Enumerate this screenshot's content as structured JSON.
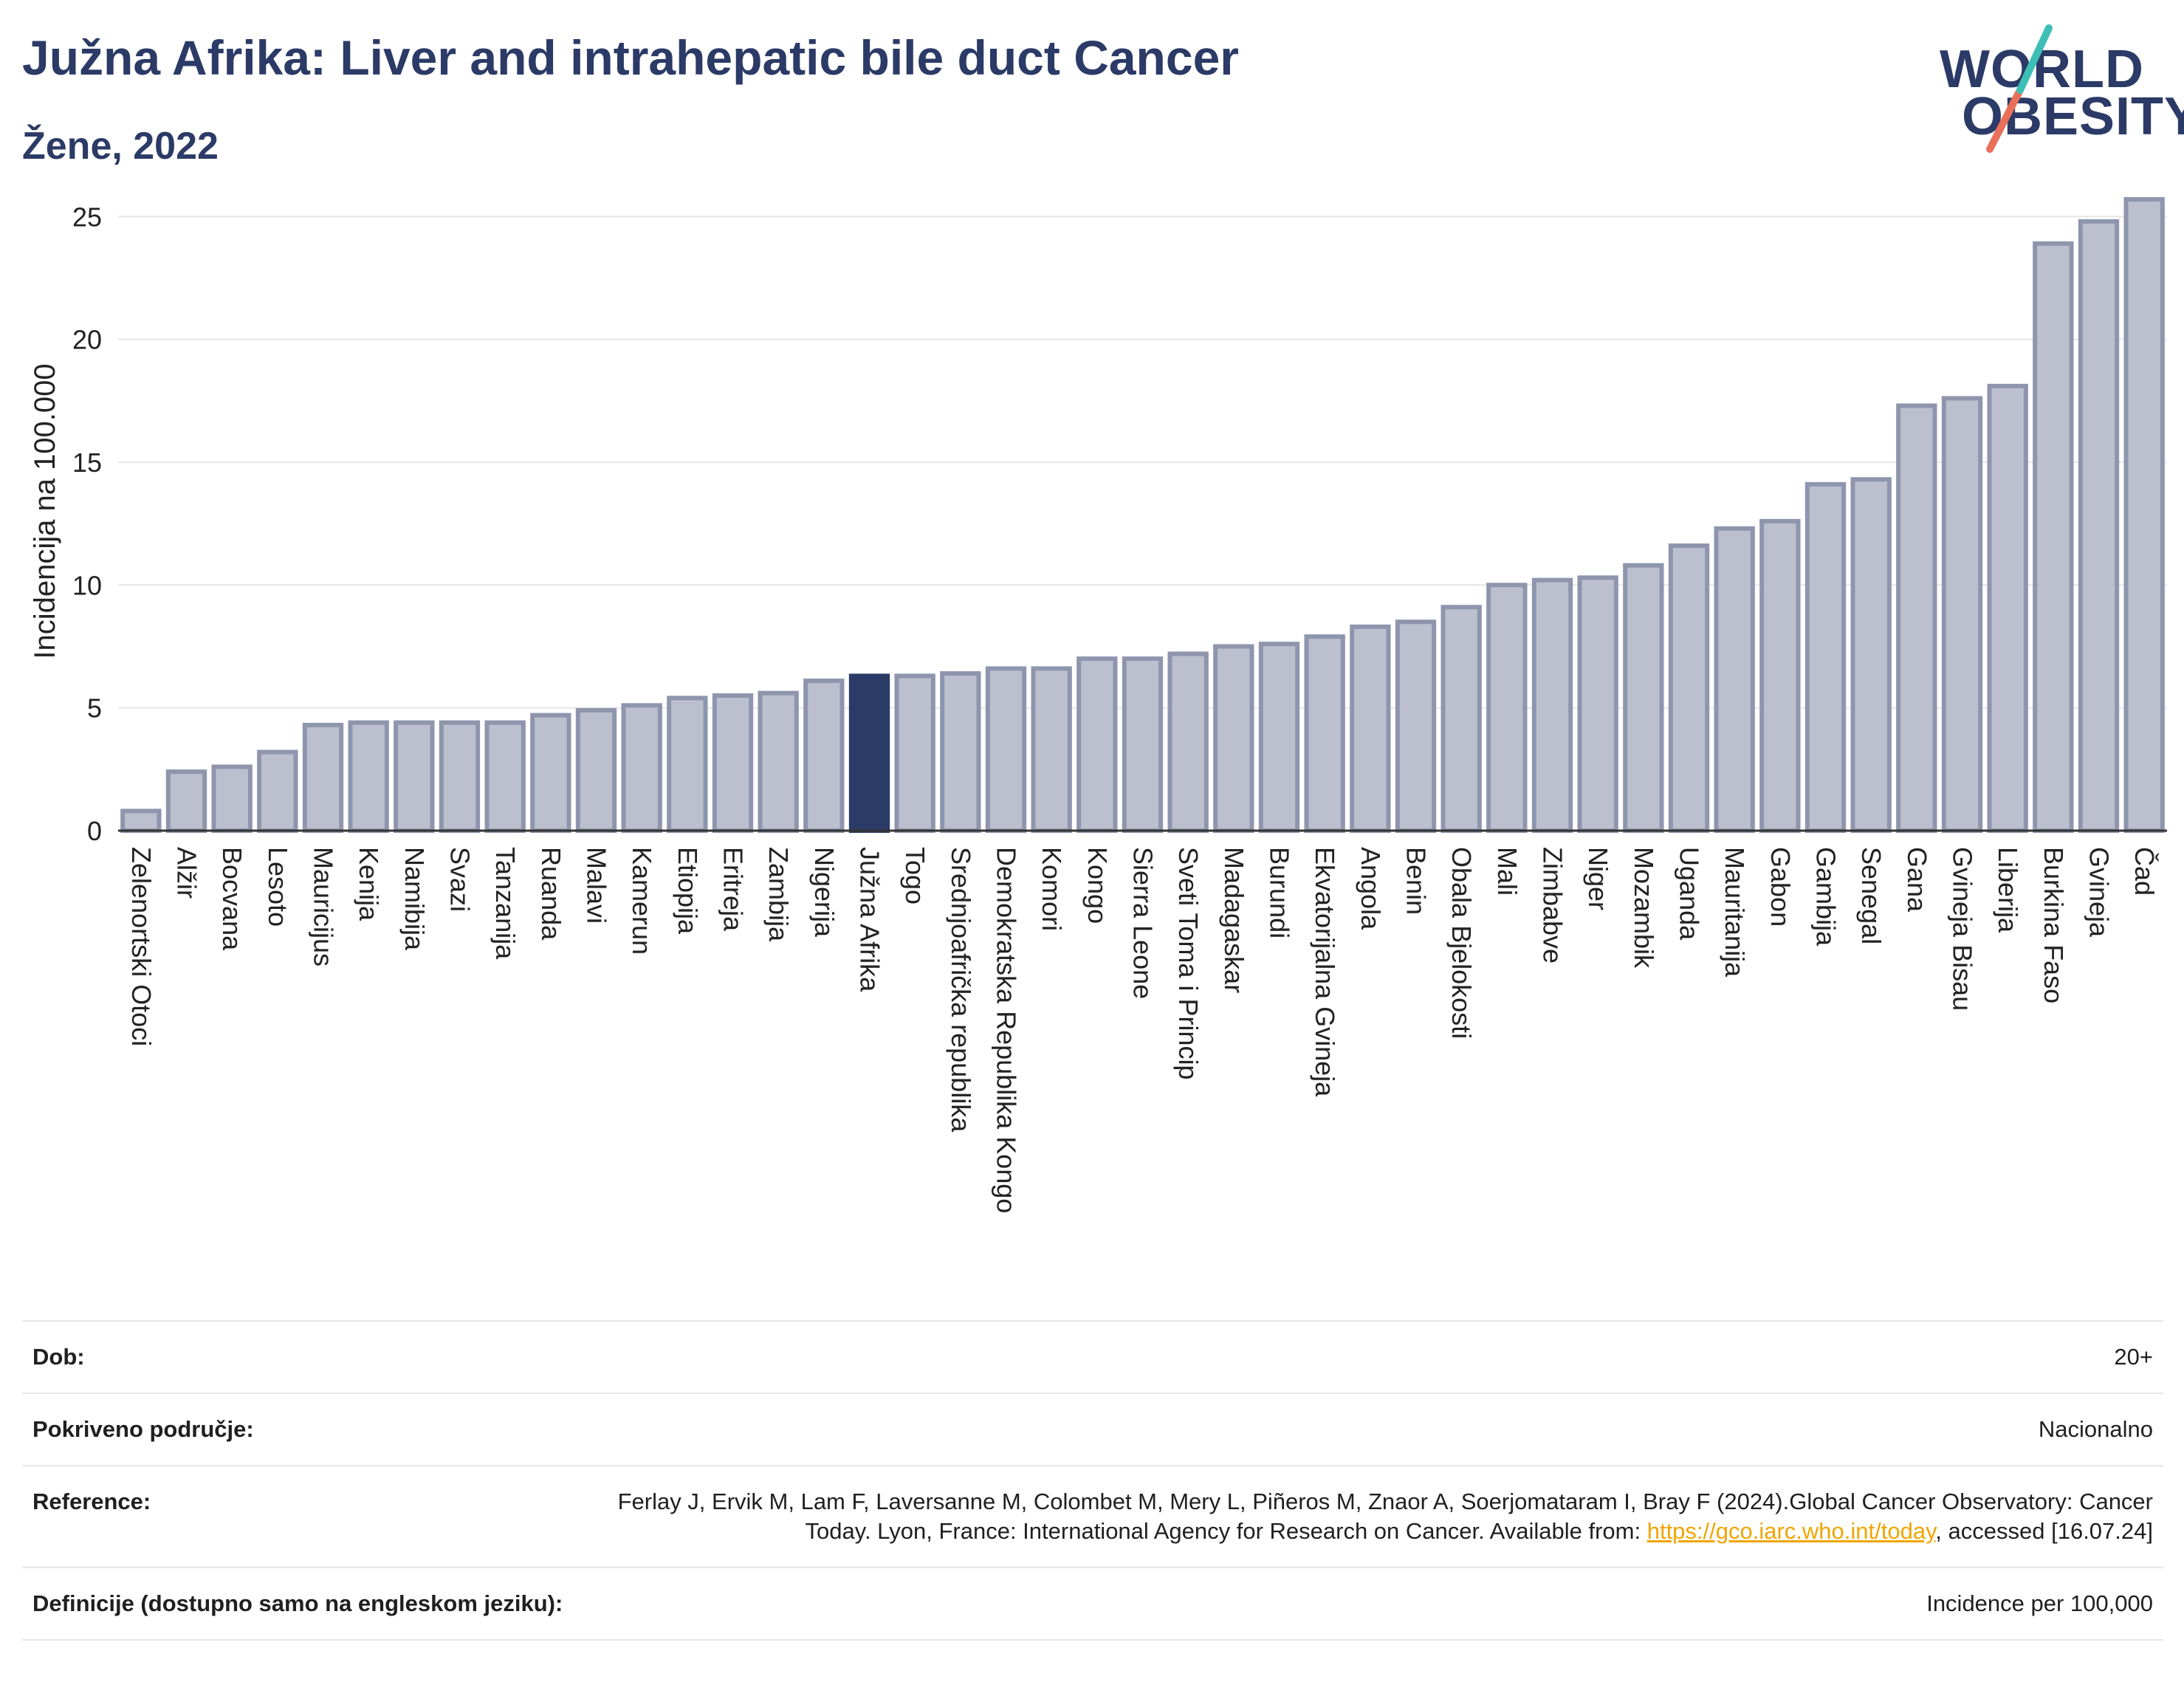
{
  "header": {
    "title": "Južna Afrika: Liver and intrahepatic bile duct Cancer",
    "subtitle": "Žene, 2022"
  },
  "logo": {
    "line1": "WORLD",
    "line2": "OBESITY"
  },
  "colors": {
    "bar": "#bcc0ce",
    "bar_edge": "#8e95ad",
    "highlight": "#2b3a66",
    "grid": "#e6e6e6",
    "title": "#2b3a66",
    "logo_teal": "#3dbfb6",
    "logo_coral": "#e8705a",
    "link": "#f0a500"
  },
  "chart_data": {
    "type": "bar",
    "ylabel": "Incidencija na 100.000",
    "xlabel": "",
    "ylim": [
      0,
      26
    ],
    "yticks": [
      0,
      5,
      10,
      15,
      20,
      25
    ],
    "grid": true,
    "highlight": "Južna Afrika",
    "categories": [
      "Zelenortski Otoci",
      "Alžir",
      "Bocvana",
      "Lesoto",
      "Mauricijus",
      "Kenija",
      "Namibija",
      "Svazi",
      "Tanzanija",
      "Ruanda",
      "Malavi",
      "Kamerun",
      "Etiopija",
      "Eritreja",
      "Zambija",
      "Nigerija",
      "Južna Afrika",
      "Togo",
      "Srednjoafrička republika",
      "Demokratska Republika Kongo",
      "Komori",
      "Kongo",
      "Sierra Leone",
      "Sveti Toma i Princip",
      "Madagaskar",
      "Burundi",
      "Ekvatorijalna Gvineja",
      "Angola",
      "Benin",
      "Obala Bjelokosti",
      "Mali",
      "Zimbabve",
      "Niger",
      "Mozambik",
      "Uganda",
      "Mauritanija",
      "Gabon",
      "Gambija",
      "Senegal",
      "Gana",
      "Gvineja Bisau",
      "Liberija",
      "Burkina Faso",
      "Gvineja",
      "Čad"
    ],
    "values": [
      0.8,
      2.4,
      2.6,
      3.2,
      4.3,
      4.4,
      4.4,
      4.4,
      4.4,
      4.7,
      4.9,
      5.1,
      5.4,
      5.5,
      5.6,
      6.1,
      6.3,
      6.3,
      6.4,
      6.6,
      6.6,
      7.0,
      7.0,
      7.2,
      7.5,
      7.6,
      7.9,
      8.3,
      8.5,
      9.1,
      10.0,
      10.2,
      10.3,
      10.8,
      11.6,
      12.3,
      12.6,
      14.1,
      14.3,
      17.3,
      17.6,
      18.1,
      23.9,
      24.8,
      25.7
    ]
  },
  "info": [
    {
      "label": "Dob:",
      "value": "20+"
    },
    {
      "label": "Pokriveno područje:",
      "value": "Nacionalno"
    },
    {
      "label": "Reference:",
      "value_pre": "Ferlay J, Ervik M, Lam F, Laversanne M, Colombet M, Mery L, Piñeros M, Znaor A, Soerjomataram I, Bray F (2024).Global Cancer Observatory: Cancer Today. Lyon, France: International Agency for Research on Cancer. Available from: ",
      "link": "https://gco.iarc.who.int/today",
      "value_post": ", accessed [16.07.24]"
    },
    {
      "label": "Definicije (dostupno samo na engleskom jeziku):",
      "value": "Incidence per 100,000"
    }
  ]
}
